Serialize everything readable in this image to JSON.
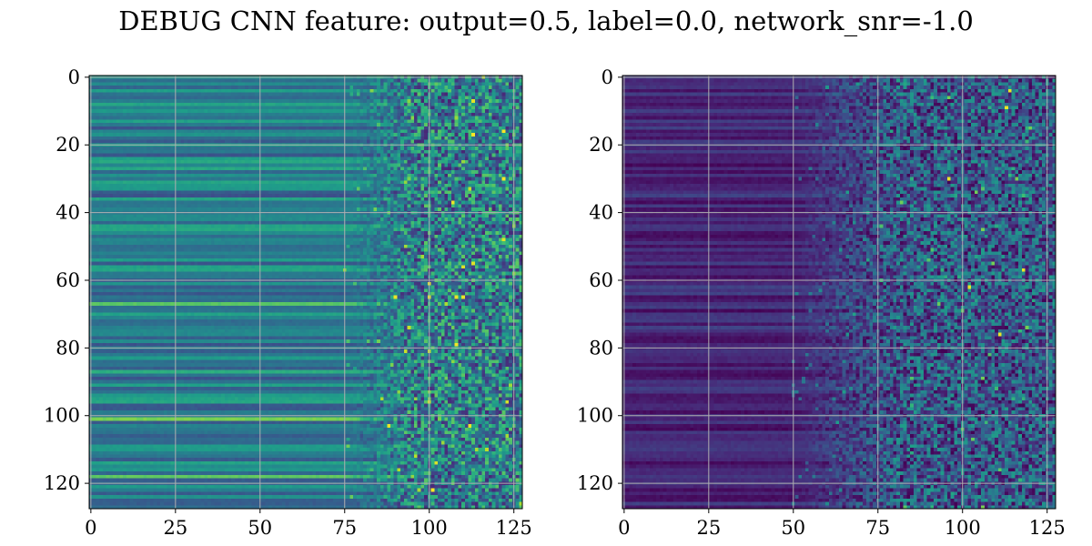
{
  "chart_data": {
    "title": "DEBUG CNN feature: output=0.5, label=0.0, network_snr=-1.0",
    "panels": [
      {
        "type": "heatmap",
        "colormap": "viridis",
        "grid": true,
        "shape": [
          128,
          128
        ],
        "xlim": [
          0,
          127
        ],
        "ylim": [
          127,
          0
        ],
        "xticks": [
          "0",
          "25",
          "50",
          "75",
          "100",
          "125"
        ],
        "yticks": [
          "0",
          "20",
          "40",
          "60",
          "80",
          "100",
          "120"
        ],
        "pattern": {
          "smooth_cols_end": 75,
          "smooth_level_range": [
            0.25,
            0.6
          ],
          "noisy_level_range": [
            0.1,
            0.75
          ],
          "bright_rows": [
            67,
            87,
            101,
            118
          ],
          "hot_spots": [
            [
              65,
              90
            ],
            [
              65,
              100
            ],
            [
              65,
              110
            ],
            [
              103,
              88
            ],
            [
              103,
              112
            ],
            [
              61,
              100
            ],
            [
              37,
              107
            ]
          ]
        }
      },
      {
        "type": "heatmap",
        "colormap": "viridis",
        "grid": true,
        "shape": [
          128,
          128
        ],
        "xlim": [
          0,
          127
        ],
        "ylim": [
          127,
          0
        ],
        "xticks": [
          "0",
          "25",
          "50",
          "75",
          "100",
          "125"
        ],
        "yticks": [
          "0",
          "20",
          "40",
          "60",
          "80",
          "100",
          "120"
        ],
        "pattern": {
          "smooth_cols_end": 50,
          "smooth_level_range": [
            0.02,
            0.2
          ],
          "noisy_level_range": [
            0.0,
            0.55
          ],
          "bright_rows": [],
          "hot_spots": [
            [
              76,
              111
            ],
            [
              9,
              113
            ],
            [
              30,
              96
            ],
            [
              4,
              114
            ],
            [
              57,
              118
            ],
            [
              62,
              102
            ]
          ]
        }
      }
    ]
  }
}
